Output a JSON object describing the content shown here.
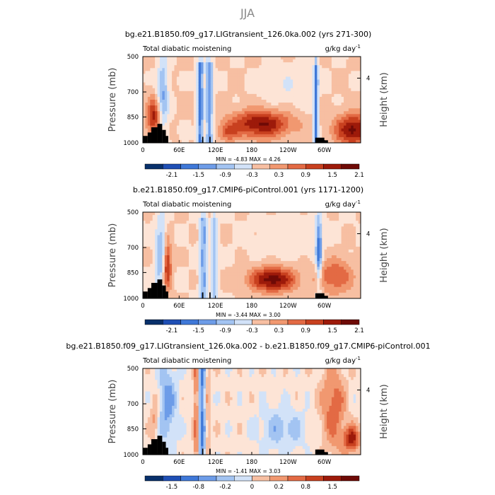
{
  "figure": {
    "season": "JJA"
  },
  "chart_data": [
    {
      "type": "heatmap",
      "title": "bg.e21.B1850.f09_g17.LIGtransient_126.0ka.002 (yrs 271-300)",
      "subtitle_left": "Total diabatic moistening",
      "subtitle_right": "g/kg day",
      "units_exp": "-1",
      "ylabel": "Pressure (mb)",
      "y2label": "Height (km)",
      "yticks": [
        "500",
        "700",
        "850",
        "1000"
      ],
      "y2ticks": [
        "4"
      ],
      "xticks": [
        "0",
        "60E",
        "120E",
        "180",
        "120W",
        "60W"
      ],
      "min_label": "MIN =",
      "min": "-4.83",
      "max_label": "MAX =",
      "max": "4.26",
      "colorbar_ticks": [
        "-2.1",
        "-1.5",
        "-0.9",
        "-0.3",
        "0.3",
        "0.9",
        "1.5",
        "2.1"
      ]
    },
    {
      "type": "heatmap",
      "title": "b.e21.B1850.f09_g17.CMIP6-piControl.001 (yrs 1171-1200)",
      "subtitle_left": "Total diabatic moistening",
      "subtitle_right": "g/kg day",
      "units_exp": "-1",
      "ylabel": "Pressure (mb)",
      "y2label": "Height (km)",
      "yticks": [
        "500",
        "700",
        "850",
        "1000"
      ],
      "y2ticks": [
        "4"
      ],
      "xticks": [
        "0",
        "60E",
        "120E",
        "180",
        "120W",
        "60W"
      ],
      "min_label": "MIN =",
      "min": "-3.44",
      "max_label": "MAX =",
      "max": "3.00",
      "colorbar_ticks": [
        "-2.1",
        "-1.5",
        "-0.9",
        "-0.3",
        "0.3",
        "0.9",
        "1.5",
        "2.1"
      ]
    },
    {
      "type": "heatmap",
      "title": "bg.e21.B1850.f09_g17.LIGtransient_126.0ka.002 - b.e21.B1850.f09_g17.CMIP6-piControl.001",
      "subtitle_left": "Total diabatic moistening",
      "subtitle_right": "g/kg day",
      "units_exp": "-1",
      "ylabel": "Pressure (mb)",
      "y2label": "Height (km)",
      "yticks": [
        "500",
        "700",
        "850",
        "1000"
      ],
      "y2ticks": [
        "4"
      ],
      "xticks": [
        "0",
        "60E",
        "120E",
        "180",
        "120W",
        "60W"
      ],
      "min_label": "MIN =",
      "min": "-1.41",
      "max_label": "MAX =",
      "max": "3.03",
      "colorbar_ticks": [
        "-1.5",
        "-0.8",
        "-0.2",
        "0",
        "0.2",
        "0.8",
        "1.5"
      ]
    }
  ],
  "palette": [
    "#08306b",
    "#1f4fb5",
    "#3f78d8",
    "#6d9ce8",
    "#a3c4f2",
    "#d2e2f8",
    "#fde4d6",
    "#f7bfa2",
    "#f19870",
    "#e36a44",
    "#c8401f",
    "#9d1a0a",
    "#6e0a06"
  ]
}
